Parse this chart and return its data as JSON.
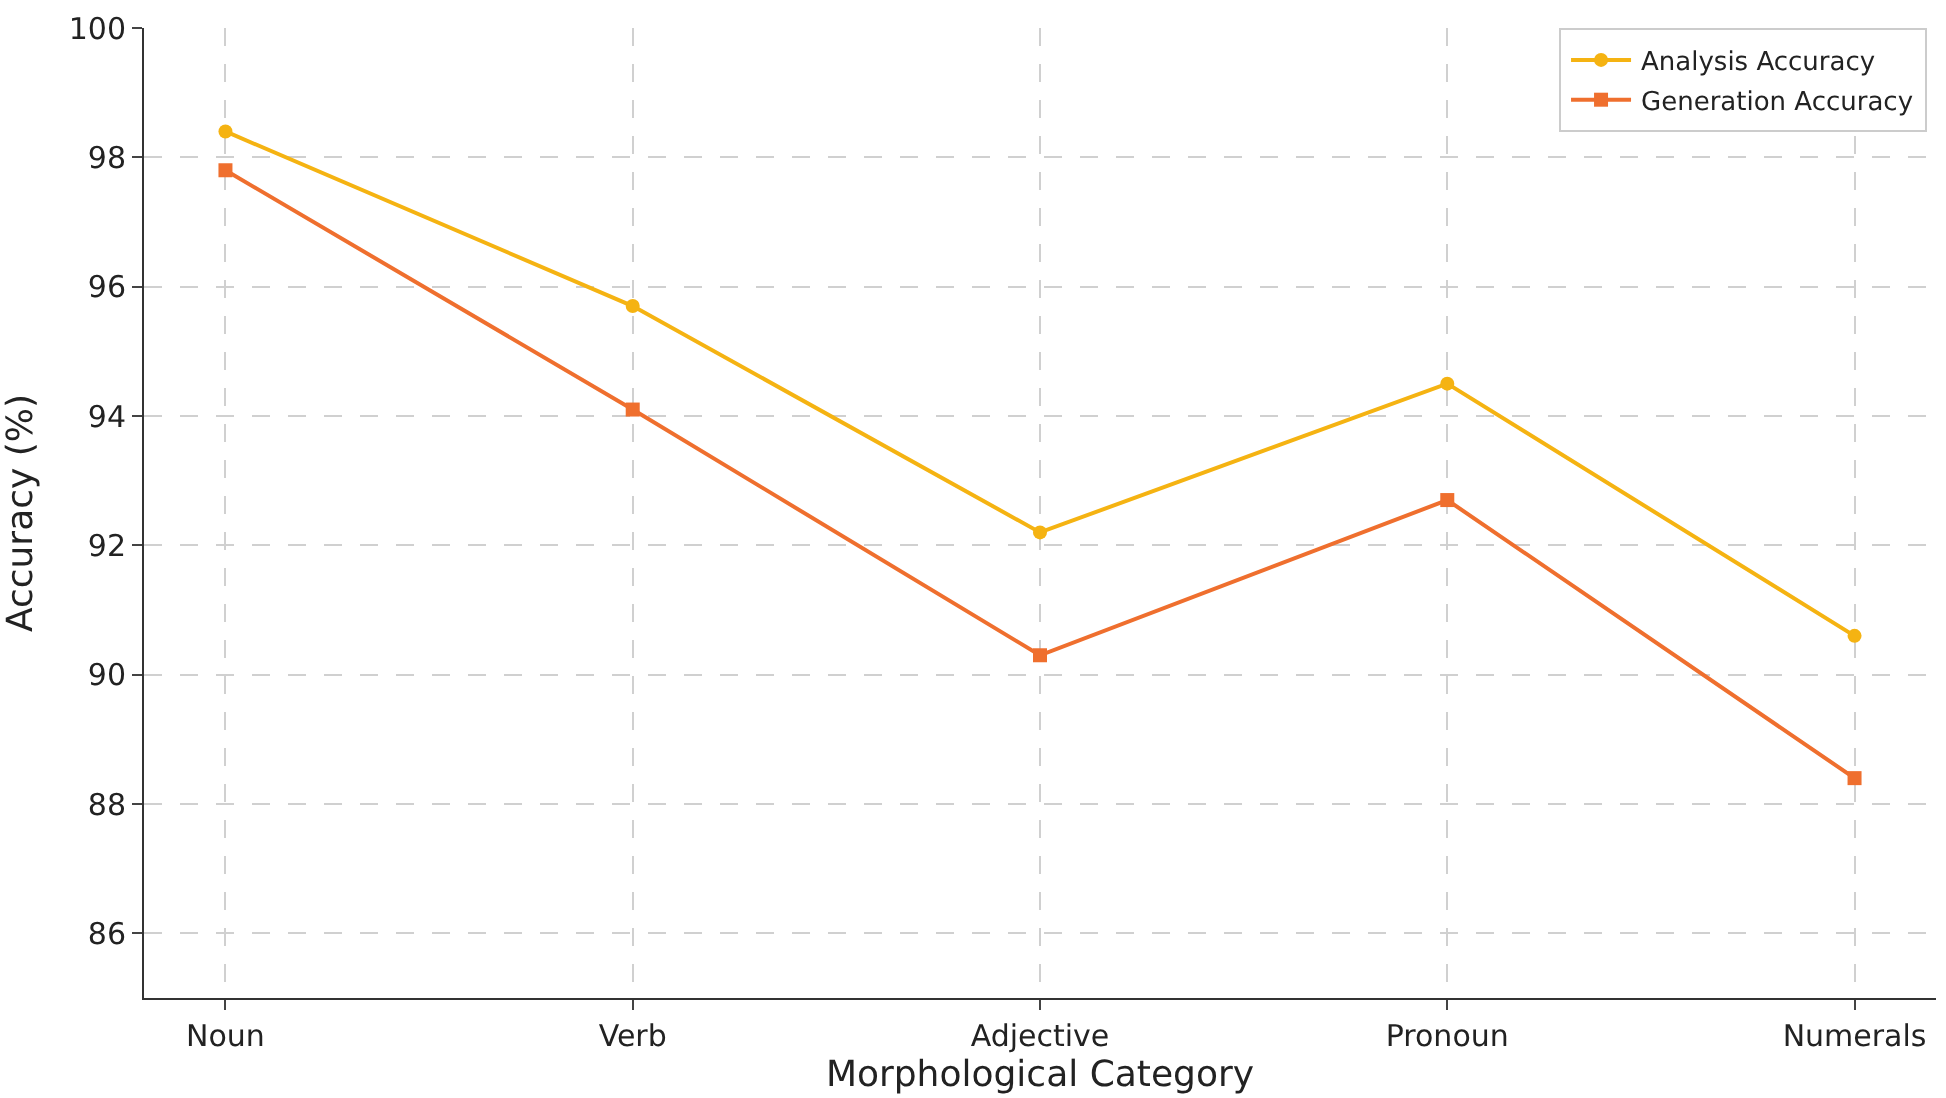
{
  "chart_data": {
    "type": "line",
    "xlabel": "Morphological Category",
    "ylabel": "Accuracy (%)",
    "categories": [
      "Noun",
      "Verb",
      "Adjective",
      "Pronoun",
      "Numerals"
    ],
    "series": [
      {
        "name": "Analysis Accuracy",
        "color": "#f5b312",
        "marker": "circle",
        "values": [
          98.4,
          95.7,
          92.2,
          94.5,
          90.6
        ]
      },
      {
        "name": "Generation Accuracy",
        "color": "#ef6f2e",
        "marker": "square",
        "values": [
          97.8,
          94.1,
          90.3,
          92.7,
          88.4
        ]
      }
    ],
    "ylim": [
      85,
      100
    ],
    "yticks": [
      86,
      88,
      90,
      92,
      94,
      96,
      98,
      100
    ],
    "grid": true,
    "legend": "top right",
    "line_style": "solid"
  }
}
